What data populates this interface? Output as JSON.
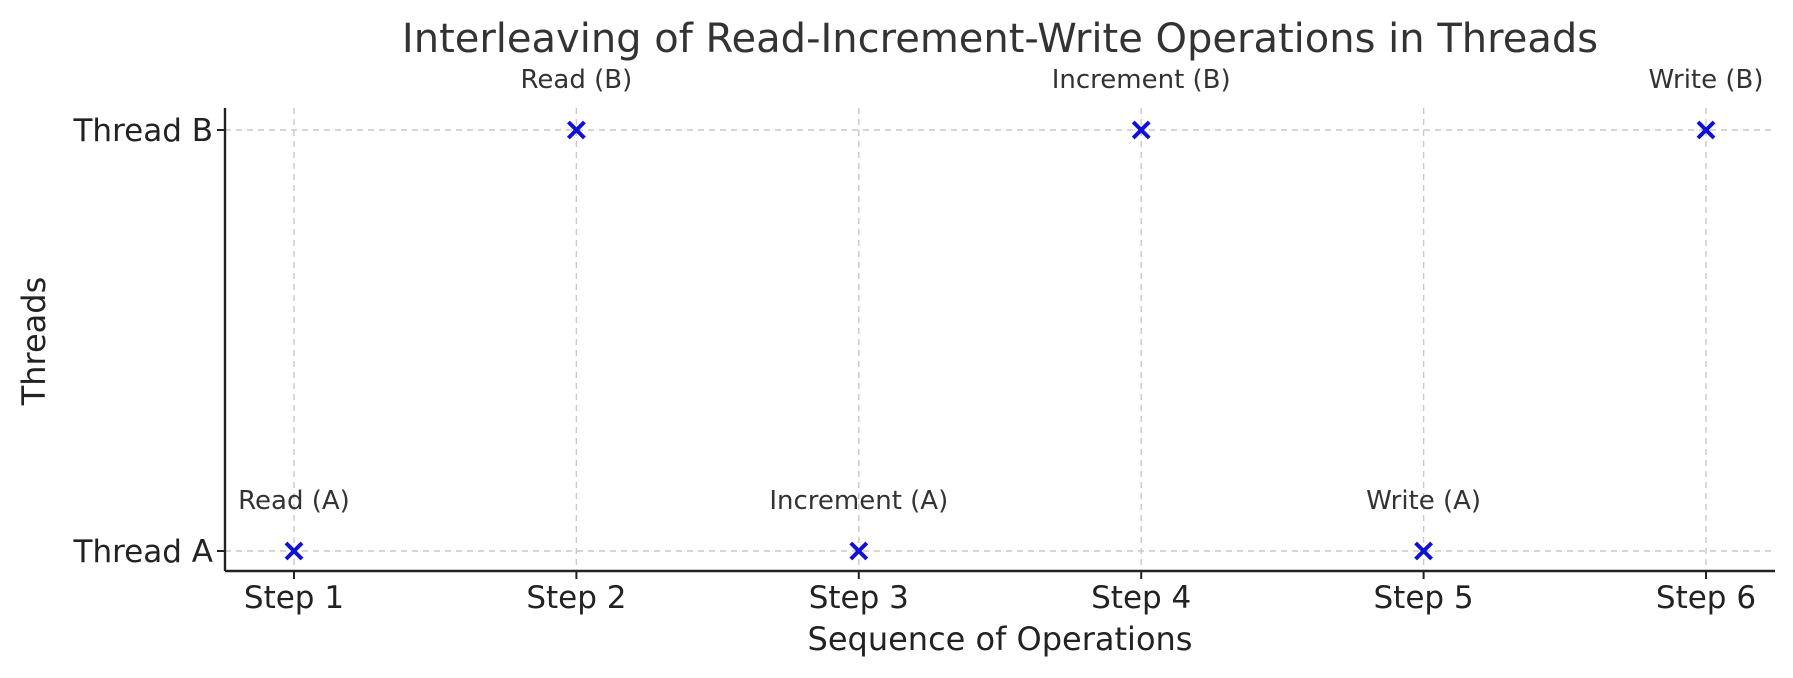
{
  "chart_data": {
    "type": "scatter",
    "title": "Interleaving of Read-Increment-Write Operations in Threads",
    "xlabel": "Sequence of Operations",
    "ylabel": "Threads",
    "x_categories": [
      "Step 1",
      "Step 2",
      "Step 3",
      "Step 4",
      "Step 5",
      "Step 6"
    ],
    "y_categories": [
      "Thread A",
      "Thread B"
    ],
    "points": [
      {
        "x": "Step 1",
        "y": "Thread A",
        "label": "Read (A)"
      },
      {
        "x": "Step 2",
        "y": "Thread B",
        "label": "Read (B)"
      },
      {
        "x": "Step 3",
        "y": "Thread A",
        "label": "Increment (A)"
      },
      {
        "x": "Step 4",
        "y": "Thread B",
        "label": "Increment (B)"
      },
      {
        "x": "Step 5",
        "y": "Thread A",
        "label": "Write (A)"
      },
      {
        "x": "Step 6",
        "y": "Thread B",
        "label": "Write (B)"
      }
    ],
    "marker": "x",
    "marker_color": "#1010d8",
    "grid": true,
    "legend": "none"
  }
}
